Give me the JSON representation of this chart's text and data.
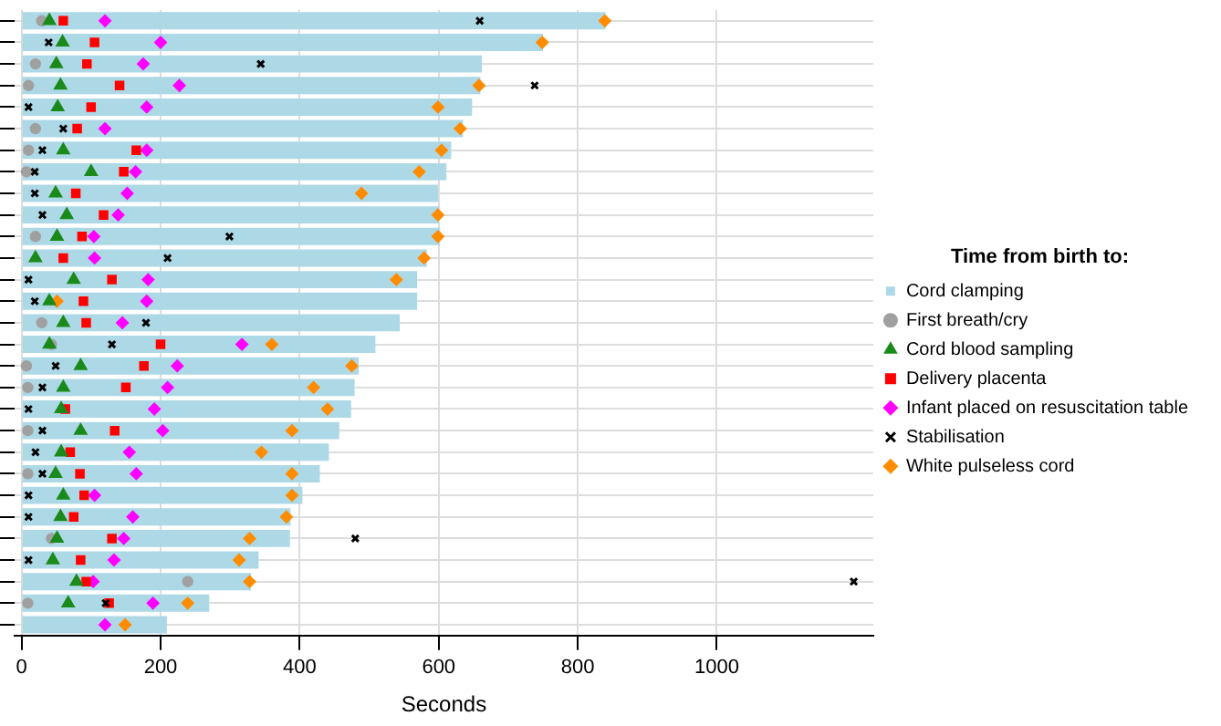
{
  "chart_data": {
    "type": "bar",
    "orientation": "horizontal",
    "xlabel": "Seconds",
    "legend_title": "Time from birth to:",
    "legend": "right",
    "grid": true,
    "tick_labels": "x",
    "xlim": [
      -10,
      1225
    ],
    "xticks": [
      0,
      200,
      400,
      600,
      800,
      1000
    ],
    "categories": [
      null,
      null,
      null,
      null,
      null,
      null,
      null,
      null,
      null,
      null,
      null,
      null,
      null,
      null,
      null,
      null,
      null,
      null,
      null,
      null,
      null,
      null,
      null,
      null,
      null,
      null,
      null,
      null,
      null
    ],
    "series": [
      {
        "name": "Cord clamping",
        "color": "#add8e6",
        "values": [
          840,
          750,
          662,
          660,
          648,
          635,
          618,
          611,
          599,
          600,
          602,
          583,
          569,
          569,
          544,
          509,
          485,
          479,
          474,
          457,
          442,
          429,
          404,
          387,
          386,
          341,
          330,
          270,
          209
        ]
      },
      {
        "name": "First breath/cry",
        "type": "scatter",
        "marker": "circle",
        "color": "#a0a0a0",
        "values": [
          29,
          null,
          20,
          10,
          null,
          20,
          10,
          7,
          null,
          null,
          20,
          null,
          null,
          null,
          29,
          43,
          7,
          9,
          null,
          9,
          null,
          9,
          null,
          null,
          43,
          null,
          239,
          9,
          null
        ]
      },
      {
        "name": "Cord blood sampling",
        "type": "scatter",
        "marker": "triangle",
        "color": "#1a8a1a",
        "values": [
          40,
          59,
          50,
          56,
          52,
          null,
          60,
          100,
          49,
          65,
          51,
          20,
          75,
          40,
          60,
          40,
          85,
          60,
          57,
          85,
          57,
          49,
          60,
          56,
          51,
          45,
          79,
          67,
          null
        ]
      },
      {
        "name": "Delivery placenta",
        "type": "scatter",
        "marker": "square",
        "color": "#ff0000",
        "values": [
          60,
          105,
          94,
          141,
          100,
          80,
          165,
          147,
          78,
          118,
          87,
          60,
          130,
          89,
          93,
          200,
          176,
          150,
          63,
          134,
          70,
          84,
          90,
          75,
          130,
          85,
          93,
          126,
          null
        ]
      },
      {
        "name": "Infant placed on resuscitation table",
        "type": "scatter",
        "marker": "diamond",
        "color": "#ff00ff",
        "values": [
          120,
          200,
          175,
          227,
          180,
          120,
          180,
          164,
          152,
          139,
          104,
          105,
          182,
          180,
          145,
          317,
          224,
          210,
          191,
          203,
          155,
          165,
          105,
          160,
          147,
          133,
          103,
          189,
          120
        ]
      },
      {
        "name": "Stabilisation",
        "type": "scatter",
        "marker": "cross",
        "color": "#000000",
        "values": [
          659,
          39,
          344,
          738,
          10,
          60,
          30,
          19,
          19,
          30,
          299,
          210,
          10,
          19,
          179,
          130,
          49,
          30,
          10,
          30,
          20,
          30,
          10,
          10,
          480,
          10,
          1197,
          121,
          null
        ]
      },
      {
        "name": "White pulseless cord",
        "type": "scatter",
        "marker": "diamond",
        "color": "#ff8c00",
        "values": [
          839,
          749,
          null,
          658,
          599,
          631,
          604,
          572,
          489,
          599,
          599,
          579,
          539,
          51,
          null,
          360,
          475,
          420,
          440,
          389,
          345,
          389,
          389,
          381,
          328,
          313,
          328,
          239,
          149
        ]
      }
    ]
  }
}
